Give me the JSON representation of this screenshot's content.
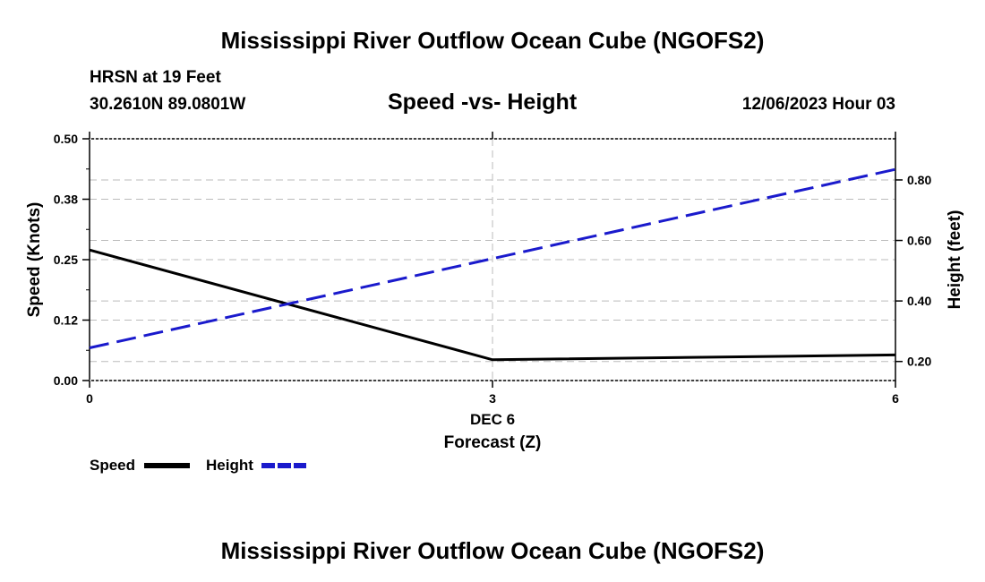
{
  "header": {
    "title": "Mississippi River Outflow Ocean Cube (NGOFS2)",
    "station": "HRSN at 19 Feet",
    "coords": "30.2610N  89.0801W",
    "date": "12/06/2023 Hour 03"
  },
  "footer": {
    "title": "Mississippi River Outflow Ocean Cube (NGOFS2)"
  },
  "colors": {
    "speed": "#000000",
    "height": "#1a1acc",
    "grid": "#bbbbbb"
  },
  "chart_data": {
    "type": "line",
    "title": "Speed -vs- Height",
    "xlabel": "Forecast (Z)",
    "x_sublabel": "DEC 6",
    "ylabel_left": "Speed (Knots)",
    "ylabel_right": "Height (feet)",
    "x": [
      0,
      3,
      6
    ],
    "xlim": [
      0,
      6
    ],
    "x_ticks": [
      "0",
      "3",
      "6"
    ],
    "ylim_left": [
      0,
      0.5
    ],
    "y_ticks_left": [
      "0.00",
      "0.12",
      "0.25",
      "0.38",
      "0.50"
    ],
    "y_tick_values_left": [
      0,
      0.125,
      0.25,
      0.375,
      0.5
    ],
    "ylim_right": [
      0.137,
      0.936
    ],
    "y_ticks_right": [
      "0.20",
      "0.40",
      "0.60",
      "0.80"
    ],
    "y_tick_values_right": [
      0.2,
      0.4,
      0.6,
      0.8
    ],
    "series": [
      {
        "name": "Speed",
        "axis": "left",
        "style": "solid",
        "x": [
          0,
          3,
          6
        ],
        "values": [
          0.27,
          0.043,
          0.053
        ]
      },
      {
        "name": "Height",
        "axis": "right",
        "style": "dashed",
        "x": [
          0,
          6
        ],
        "values": [
          0.245,
          0.835
        ]
      }
    ],
    "legend": [
      "Speed",
      "Height"
    ],
    "legend_position": "bottom-left"
  }
}
